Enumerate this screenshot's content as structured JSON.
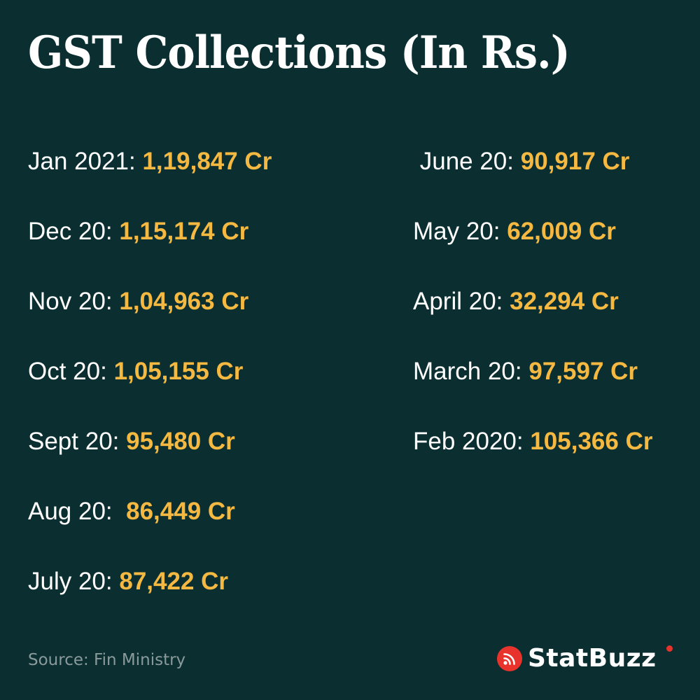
{
  "title": "GST Collections (In Rs.)",
  "colors": {
    "background": "#0b2f31",
    "value": "#f5b942",
    "brand_accent": "#e8332c"
  },
  "left_column": [
    {
      "label": "Jan 2021: ",
      "value": "1,19,847 Cr"
    },
    {
      "label": "Dec 20: ",
      "value": "1,15,174 Cr"
    },
    {
      "label": "Nov 20: ",
      "value": "1,04,963 Cr"
    },
    {
      "label": "Oct 20: ",
      "value": "1,05,155 Cr"
    },
    {
      "label": "Sept 20: ",
      "value": "95,480 Cr"
    },
    {
      "label": "Aug 20:  ",
      "value": "86,449 Cr"
    },
    {
      "label": "July 20: ",
      "value": "87,422 Cr"
    }
  ],
  "right_column": [
    {
      "label": " June 20: ",
      "value": "90,917 Cr"
    },
    {
      "label": "May 20: ",
      "value": "62,009 Cr"
    },
    {
      "label": "April 20: ",
      "value": "32,294 Cr"
    },
    {
      "label": "March 20: ",
      "value": "97,597 Cr"
    },
    {
      "label": "Feb 2020: ",
      "value": "105,366 Cr"
    }
  ],
  "source": "Source: Fin Ministry",
  "brand": {
    "name": "StatBuzz",
    "icon": "rss-feed-icon"
  }
}
